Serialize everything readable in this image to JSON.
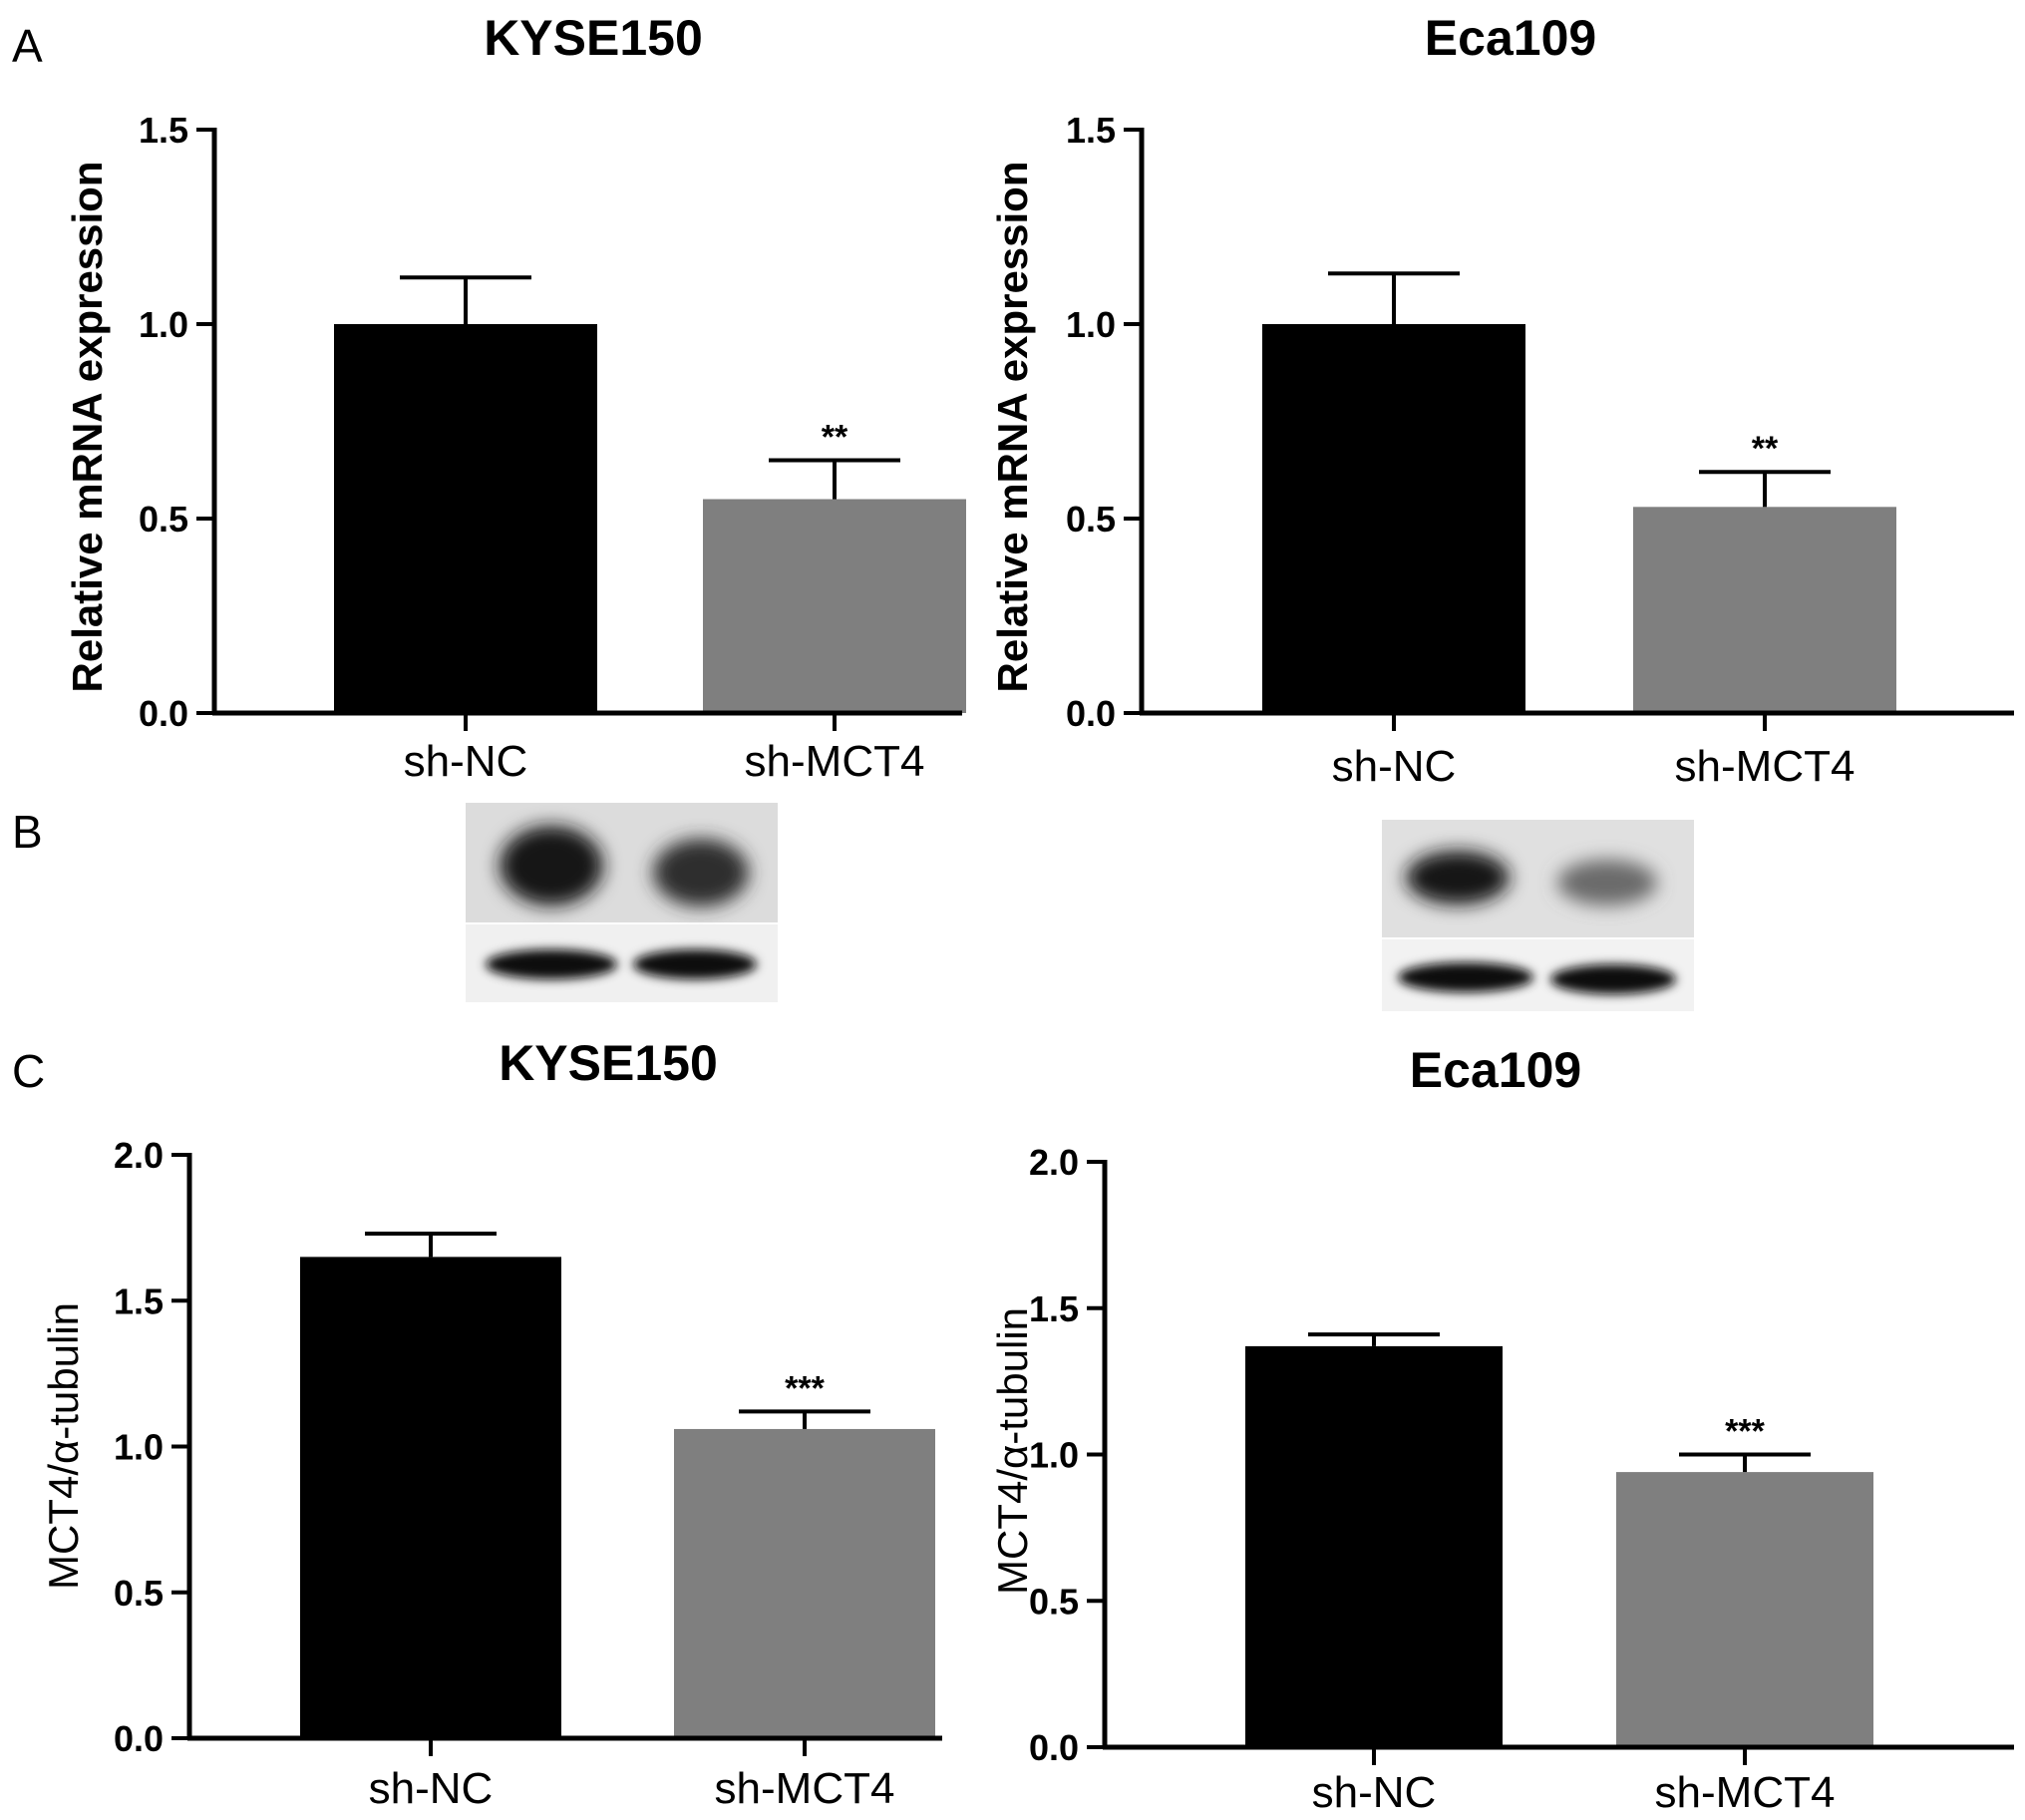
{
  "panels": {
    "a": "A",
    "b": "B",
    "c": "C"
  },
  "chart_data": [
    {
      "type": "bar",
      "panel": "A",
      "title": "KYSE150",
      "ylabel": "Relative mRNA expression",
      "ylim": [
        0,
        1.5
      ],
      "yticks": [
        "0.0",
        "0.5",
        "1.0",
        "1.5"
      ],
      "categories": [
        "sh-NC",
        "sh-MCT4"
      ],
      "values": [
        1.0,
        0.55
      ],
      "errors": [
        0.12,
        0.1
      ],
      "colors": [
        "#000000",
        "#7f7f7f"
      ],
      "significance": [
        "",
        "**"
      ]
    },
    {
      "type": "bar",
      "panel": "A",
      "title": "Eca109",
      "ylabel": "Relative mRNA expression",
      "ylim": [
        0,
        1.5
      ],
      "yticks": [
        "0.0",
        "0.5",
        "1.0",
        "1.5"
      ],
      "categories": [
        "sh-NC",
        "sh-MCT4"
      ],
      "values": [
        1.0,
        0.53
      ],
      "errors": [
        0.13,
        0.09
      ],
      "colors": [
        "#000000",
        "#7f7f7f"
      ],
      "significance": [
        "",
        "**"
      ]
    },
    {
      "type": "bar",
      "panel": "C",
      "title": "KYSE150",
      "ylabel": "MCT4/α-tubulin",
      "ylim": [
        0,
        2.0
      ],
      "yticks": [
        "0.0",
        "0.5",
        "1.0",
        "1.5",
        "2.0"
      ],
      "categories": [
        "sh-NC",
        "sh-MCT4"
      ],
      "values": [
        1.65,
        1.06
      ],
      "errors": [
        0.08,
        0.06
      ],
      "colors": [
        "#000000",
        "#7f7f7f"
      ],
      "significance": [
        "",
        "***"
      ]
    },
    {
      "type": "bar",
      "panel": "C",
      "title": "Eca109",
      "ylabel": "MCT4/α-tubulin",
      "ylim": [
        0,
        2.0
      ],
      "yticks": [
        "0.0",
        "0.5",
        "1.0",
        "1.5",
        "2.0"
      ],
      "categories": [
        "sh-NC",
        "sh-MCT4"
      ],
      "values": [
        1.37,
        0.94
      ],
      "errors": [
        0.04,
        0.06
      ],
      "colors": [
        "#000000",
        "#7f7f7f"
      ],
      "significance": [
        "",
        "***"
      ]
    }
  ]
}
